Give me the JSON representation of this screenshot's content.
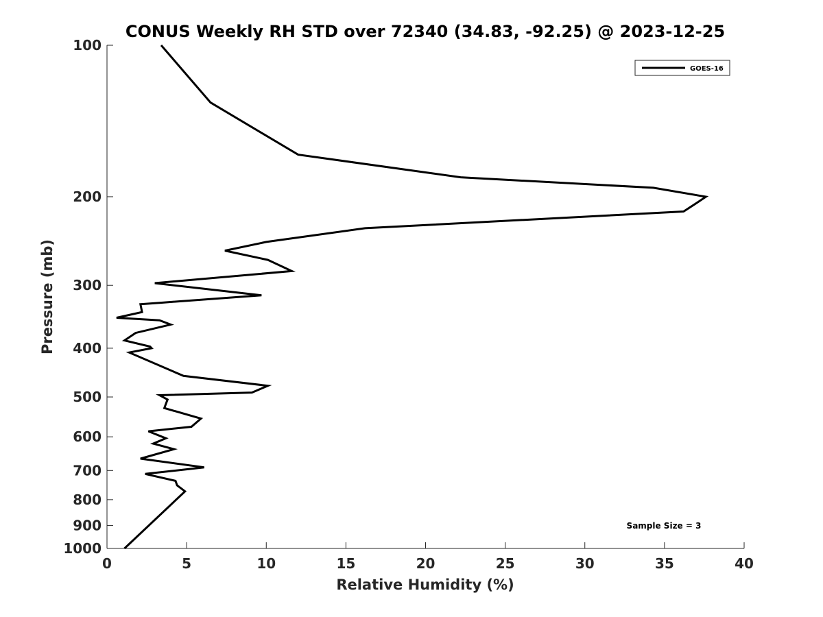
{
  "chart_data": {
    "type": "line",
    "title": "CONUS Weekly RH STD over 72340 (34.83, -92.25) @ 2023-12-25",
    "xlabel": "Relative Humidity (%)",
    "ylabel": "Pressure (mb)",
    "xlim": [
      0,
      40
    ],
    "ylim": [
      1000,
      100
    ],
    "yscale": "log",
    "xticks": [
      "0",
      "5",
      "10",
      "15",
      "20",
      "25",
      "30",
      "35",
      "40"
    ],
    "yticks": [
      "100",
      "200",
      "300",
      "400",
      "500",
      "600",
      "700",
      "800",
      "900",
      "1000"
    ],
    "grid": false,
    "legend_position": "top-right",
    "annotation": "Sample Size = 3",
    "series": [
      {
        "name": "GOES-16",
        "color": "#000000",
        "x": [
          3.4,
          6.5,
          12.0,
          22.2,
          34.3,
          37.6,
          37.0,
          36.2,
          16.2,
          10.0,
          7.4,
          10.1,
          11.6,
          3.0,
          9.7,
          3.3,
          2.1,
          2.2,
          0.6,
          3.3,
          4.0,
          1.8,
          1.1,
          2.7,
          2.8,
          1.4,
          4.8,
          10.1,
          9.1,
          3.3,
          3.8,
          3.6,
          5.9,
          5.3,
          2.6,
          3.7,
          2.9,
          4.2,
          2.1,
          6.1,
          2.4,
          4.3,
          4.4,
          4.9,
          1.1
        ],
        "y": [
          100,
          130,
          165,
          183,
          192,
          200,
          206,
          214,
          231,
          246,
          256,
          267,
          281,
          297,
          314,
          325,
          327,
          339,
          348,
          352,
          359,
          373,
          386,
          397,
          400,
          408,
          454,
          475,
          490,
          496,
          506,
          526,
          552,
          573,
          585,
          604,
          619,
          635,
          663,
          690,
          711,
          734,
          749,
          770,
          1000
        ]
      }
    ]
  }
}
